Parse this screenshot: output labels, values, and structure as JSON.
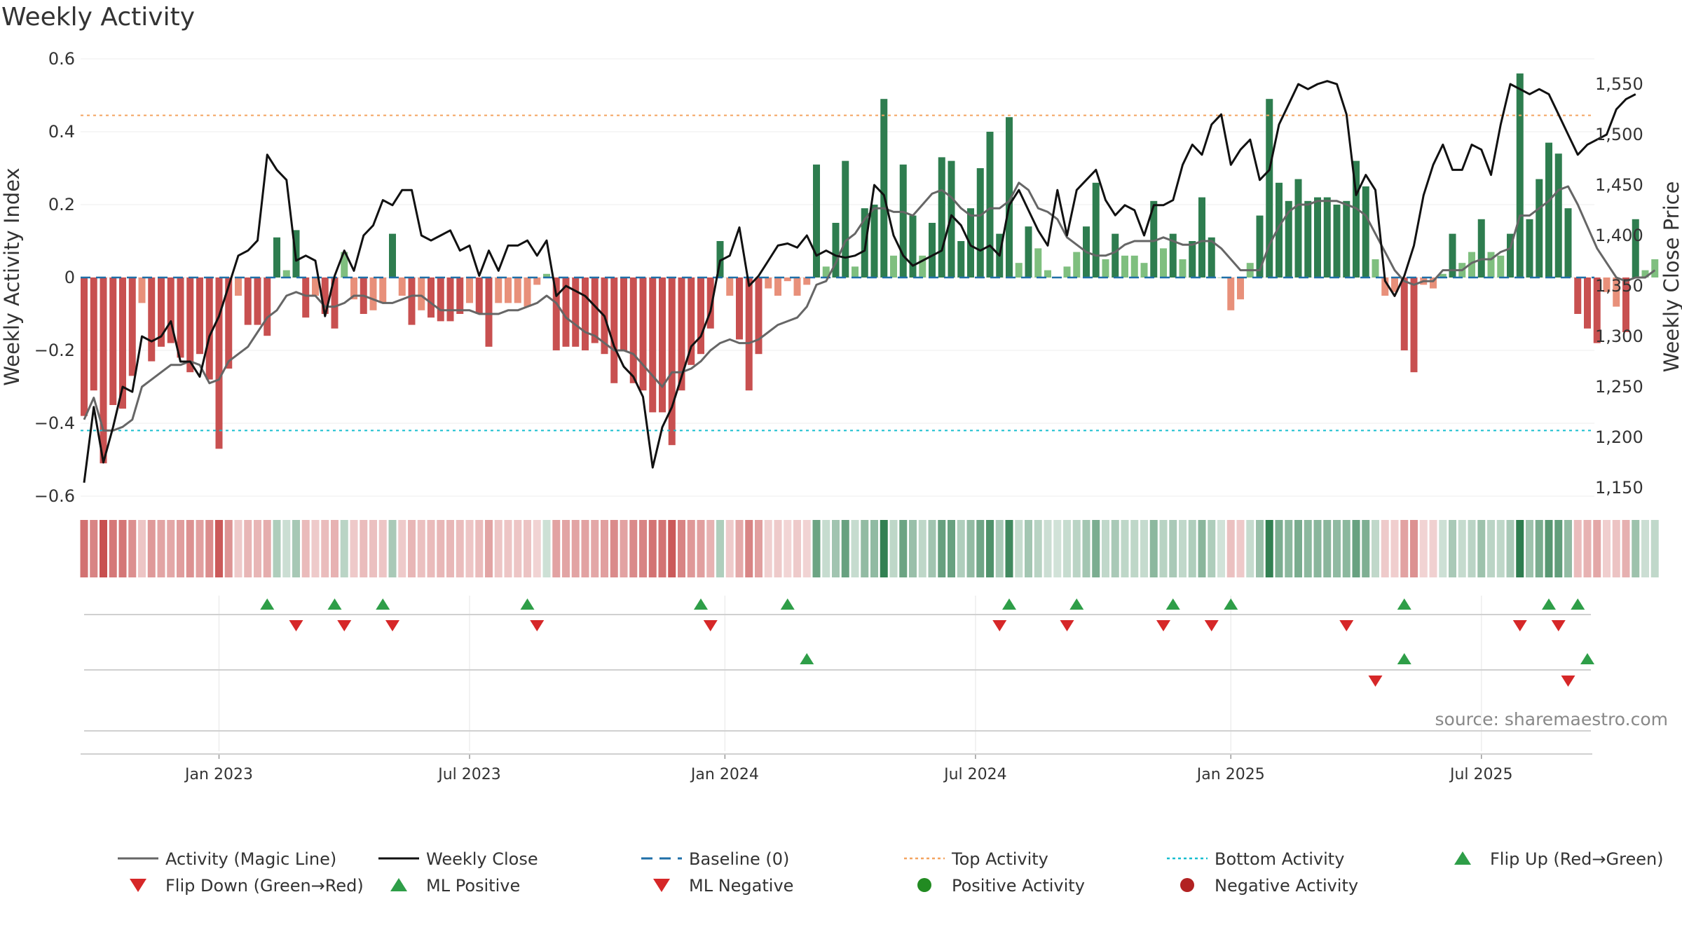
{
  "chart_data": {
    "type": "bar",
    "title": "Weekly Activity",
    "source": "source: sharemaestro.com",
    "ylabel_left": "Weekly Activity Index",
    "ylabel_right": "Weekly Close Price",
    "ylim_left": [
      -0.6,
      0.6
    ],
    "ylim_right": [
      1130,
      1570
    ],
    "left_ticks": [
      {
        "v": 0.6,
        "label": "0.6"
      },
      {
        "v": 0.4,
        "label": "0.4"
      },
      {
        "v": 0.2,
        "label": "0.2"
      },
      {
        "v": 0,
        "label": "0"
      },
      {
        "v": -0.2,
        "label": "−0.2"
      },
      {
        "v": -0.4,
        "label": "−0.4"
      },
      {
        "v": -0.6,
        "label": "−0.6"
      }
    ],
    "right_ticks": [
      {
        "v": 1550,
        "label": "1,550"
      },
      {
        "v": 1500,
        "label": "1,500"
      },
      {
        "v": 1450,
        "label": "1,450"
      },
      {
        "v": 1400,
        "label": "1,400"
      },
      {
        "v": 1350,
        "label": "1,350"
      },
      {
        "v": 1300,
        "label": "1,300"
      },
      {
        "v": 1250,
        "label": "1,250"
      },
      {
        "v": 1200,
        "label": "1,200"
      },
      {
        "v": 1150,
        "label": "1,150"
      }
    ],
    "x_ticks": [
      {
        "week": 14,
        "label": "Jan 2023"
      },
      {
        "week": 40,
        "label": "Jul 2023"
      },
      {
        "week": 66.5,
        "label": "Jan 2024"
      },
      {
        "week": 92.5,
        "label": "Jul 2024"
      },
      {
        "week": 119,
        "label": "Jan 2025"
      },
      {
        "week": 145,
        "label": "Jul 2025"
      }
    ],
    "top_activity": 0.445,
    "bottom_activity": -0.42,
    "activity": [
      -0.38,
      -0.31,
      -0.51,
      -0.35,
      -0.36,
      -0.27,
      -0.07,
      -0.23,
      -0.19,
      -0.18,
      -0.22,
      -0.26,
      -0.21,
      -0.28,
      -0.47,
      -0.25,
      -0.05,
      -0.13,
      -0.13,
      -0.16,
      0.11,
      0.02,
      0.13,
      -0.11,
      -0.05,
      -0.1,
      -0.14,
      0.07,
      -0.06,
      -0.1,
      -0.09,
      -0.07,
      0.12,
      -0.05,
      -0.13,
      -0.09,
      -0.11,
      -0.12,
      -0.12,
      -0.1,
      -0.07,
      -0.1,
      -0.19,
      -0.07,
      -0.07,
      -0.07,
      -0.08,
      -0.02,
      0.01,
      -0.2,
      -0.19,
      -0.19,
      -0.2,
      -0.18,
      -0.21,
      -0.29,
      -0.2,
      -0.29,
      -0.31,
      -0.37,
      -0.37,
      -0.46,
      -0.31,
      -0.24,
      -0.21,
      -0.14,
      0.1,
      -0.05,
      -0.17,
      -0.31,
      -0.21,
      -0.03,
      -0.05,
      -0.01,
      -0.05,
      -0.02,
      0.31,
      0.03,
      0.15,
      0.32,
      0.03,
      0.19,
      0.2,
      0.49,
      0.06,
      0.31,
      0.17,
      0.06,
      0.15,
      0.33,
      0.32,
      0.1,
      0.19,
      0.3,
      0.4,
      0.12,
      0.44,
      0.04,
      0.14,
      0.08,
      0.02,
      0.0,
      0.03,
      0.07,
      0.14,
      0.26,
      0.05,
      0.12,
      0.06,
      0.06,
      0.04,
      0.21,
      0.08,
      0.12,
      0.05,
      0.1,
      0.22,
      0.11,
      0.0,
      -0.09,
      -0.06,
      0.04,
      0.17,
      0.49,
      0.26,
      0.21,
      0.27,
      0.21,
      0.22,
      0.22,
      0.2,
      0.21,
      0.32,
      0.25,
      0.05,
      -0.05,
      -0.04,
      -0.2,
      -0.26,
      -0.02,
      -0.03,
      0.01,
      0.12,
      0.04,
      0.07,
      0.16,
      0.07,
      0.06,
      0.12,
      0.56,
      0.16,
      0.27,
      0.37,
      0.34,
      0.19,
      -0.1,
      -0.14,
      -0.18,
      -0.04,
      -0.08,
      -0.15,
      0.16,
      0.02,
      0.05
    ],
    "magic_line": [
      -0.39,
      -0.33,
      -0.42,
      -0.42,
      -0.41,
      -0.39,
      -0.3,
      -0.28,
      -0.26,
      -0.24,
      -0.24,
      -0.23,
      -0.24,
      -0.29,
      -0.28,
      -0.23,
      -0.21,
      -0.19,
      -0.15,
      -0.11,
      -0.09,
      -0.05,
      -0.04,
      -0.05,
      -0.05,
      -0.08,
      -0.08,
      -0.07,
      -0.05,
      -0.05,
      -0.06,
      -0.07,
      -0.07,
      -0.06,
      -0.05,
      -0.05,
      -0.07,
      -0.09,
      -0.09,
      -0.09,
      -0.09,
      -0.1,
      -0.1,
      -0.1,
      -0.09,
      -0.09,
      -0.08,
      -0.07,
      -0.05,
      -0.07,
      -0.11,
      -0.13,
      -0.15,
      -0.16,
      -0.18,
      -0.2,
      -0.2,
      -0.21,
      -0.24,
      -0.27,
      -0.3,
      -0.26,
      -0.26,
      -0.25,
      -0.23,
      -0.2,
      -0.18,
      -0.17,
      -0.18,
      -0.18,
      -0.17,
      -0.15,
      -0.13,
      -0.12,
      -0.11,
      -0.08,
      -0.02,
      -0.01,
      0.04,
      0.1,
      0.12,
      0.16,
      0.19,
      0.19,
      0.18,
      0.18,
      0.17,
      0.2,
      0.23,
      0.24,
      0.22,
      0.19,
      0.17,
      0.17,
      0.19,
      0.19,
      0.21,
      0.26,
      0.24,
      0.19,
      0.18,
      0.16,
      0.11,
      0.09,
      0.07,
      0.06,
      0.06,
      0.07,
      0.09,
      0.1,
      0.1,
      0.1,
      0.11,
      0.1,
      0.09,
      0.09,
      0.1,
      0.1,
      0.08,
      0.05,
      0.02,
      0.02,
      0.02,
      0.09,
      0.14,
      0.18,
      0.2,
      0.2,
      0.21,
      0.21,
      0.21,
      0.2,
      0.19,
      0.17,
      0.12,
      0.07,
      0.02,
      -0.01,
      -0.02,
      -0.01,
      -0.01,
      0.02,
      0.02,
      0.02,
      0.04,
      0.05,
      0.05,
      0.07,
      0.08,
      0.17,
      0.17,
      0.19,
      0.21,
      0.24,
      0.25,
      0.2,
      0.14,
      0.08,
      0.04,
      0.0,
      -0.01,
      0.0,
      0.0,
      0.02
    ],
    "weekly_close": [
      1155,
      1230,
      1175,
      1210,
      1250,
      1245,
      1300,
      1295,
      1300,
      1315,
      1275,
      1275,
      1260,
      1300,
      1320,
      1350,
      1380,
      1385,
      1395,
      1480,
      1465,
      1455,
      1375,
      1380,
      1375,
      1320,
      1360,
      1385,
      1365,
      1400,
      1410,
      1435,
      1430,
      1445,
      1445,
      1400,
      1395,
      1400,
      1405,
      1385,
      1390,
      1360,
      1385,
      1365,
      1390,
      1390,
      1395,
      1380,
      1395,
      1340,
      1350,
      1345,
      1340,
      1330,
      1320,
      1290,
      1270,
      1260,
      1240,
      1170,
      1210,
      1230,
      1260,
      1290,
      1300,
      1325,
      1375,
      1380,
      1408,
      1350,
      1360,
      1375,
      1390,
      1392,
      1388,
      1400,
      1380,
      1385,
      1380,
      1378,
      1380,
      1385,
      1450,
      1440,
      1400,
      1380,
      1370,
      1375,
      1380,
      1385,
      1420,
      1410,
      1390,
      1385,
      1390,
      1380,
      1430,
      1445,
      1425,
      1405,
      1390,
      1445,
      1400,
      1445,
      1455,
      1465,
      1435,
      1420,
      1430,
      1425,
      1400,
      1430,
      1430,
      1435,
      1470,
      1490,
      1480,
      1510,
      1520,
      1470,
      1485,
      1495,
      1455,
      1465,
      1510,
      1530,
      1550,
      1545,
      1550,
      1553,
      1550,
      1520,
      1440,
      1460,
      1445,
      1355,
      1340,
      1360,
      1390,
      1440,
      1470,
      1490,
      1465,
      1465,
      1490,
      1485,
      1460,
      1510,
      1550,
      1545,
      1540,
      1545,
      1540,
      1520,
      1500,
      1480,
      1490,
      1495,
      1500,
      1525,
      1535,
      1540
    ]
  },
  "legend": [
    {
      "key": "magic",
      "label": "Activity (Magic Line)",
      "symbol": "line",
      "color": "#666666"
    },
    {
      "key": "close",
      "label": "Weekly Close",
      "symbol": "line",
      "color": "#111111"
    },
    {
      "key": "baseline",
      "label": "Baseline (0)",
      "symbol": "dashed",
      "color": "#1f6fa8"
    },
    {
      "key": "top",
      "label": "Top Activity",
      "symbol": "dotted",
      "color": "#f4a460"
    },
    {
      "key": "bottom",
      "label": "Bottom Activity",
      "symbol": "dotted",
      "color": "#17becf"
    },
    {
      "key": "flipup",
      "label": "Flip Up (Red→Green)",
      "symbol": "tri-up",
      "color": "#2e9e48"
    },
    {
      "key": "flipdown",
      "label": "Flip Down (Green→Red)",
      "symbol": "tri-down",
      "color": "#d62728"
    },
    {
      "key": "mlpos",
      "label": "ML Positive",
      "symbol": "tri-up",
      "color": "#2e9e48"
    },
    {
      "key": "mlneg",
      "label": "ML Negative",
      "symbol": "tri-down",
      "color": "#d62728"
    },
    {
      "key": "pos",
      "label": "Positive Activity",
      "symbol": "dot",
      "color": "#228b22"
    },
    {
      "key": "neg",
      "label": "Negative Activity",
      "symbol": "dot",
      "color": "#b22222"
    }
  ],
  "colors": {
    "strong_green": "#2e7d4f",
    "light_green": "#7fbf7f",
    "strong_red": "#c85050",
    "light_red": "#e8907a",
    "magic": "#666666",
    "close": "#111111",
    "baseline": "#1f6fa8",
    "top": "#f4a460",
    "bottom": "#17becf",
    "up": "#2e9e48",
    "down": "#d62728"
  },
  "events": {
    "flip_up_weeks": [
      19,
      26,
      31,
      46,
      64,
      73,
      96,
      103,
      113,
      119,
      137,
      152,
      155
    ],
    "flip_down_weeks": [
      22,
      27,
      32,
      47,
      65,
      95,
      102,
      112,
      117,
      131,
      149,
      153
    ],
    "ml_positive_weeks": [
      75,
      137,
      156
    ],
    "ml_negative_weeks": [
      134,
      154
    ]
  }
}
